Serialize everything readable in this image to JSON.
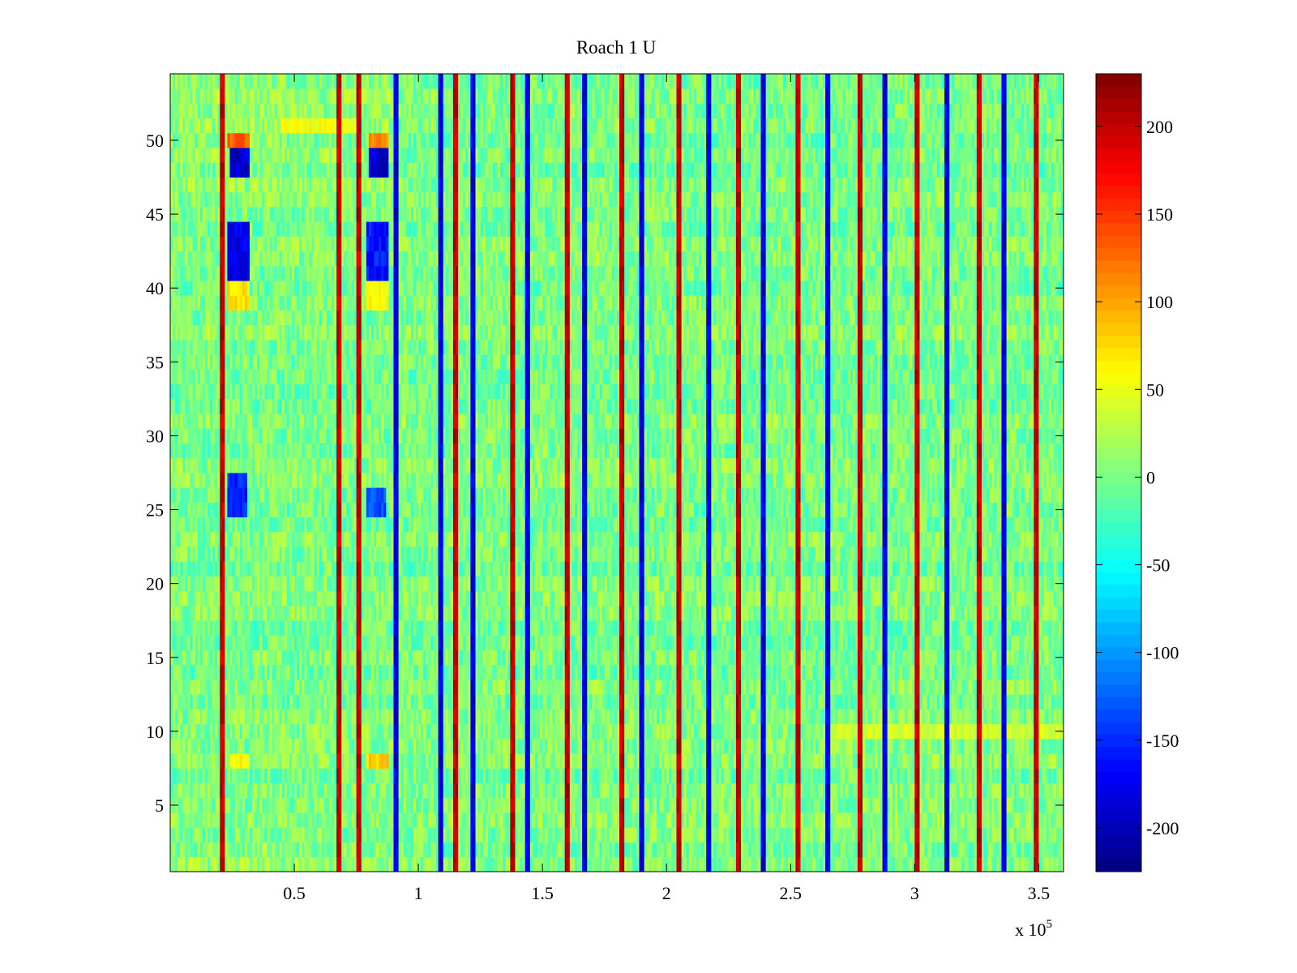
{
  "chart_data": {
    "type": "heatmap",
    "title": "Roach 1 U",
    "xlabel": "",
    "ylabel": "",
    "x_exponent_label": "x 10",
    "x_exponent_power": "5",
    "xlim": [
      0,
      3.6
    ],
    "ylim": [
      0.5,
      54.5
    ],
    "rows": 54,
    "columns": 360,
    "x_ticks": [
      0.5,
      1,
      1.5,
      2,
      2.5,
      3,
      3.5
    ],
    "x_tick_labels": [
      "0.5",
      "1",
      "1.5",
      "2",
      "2.5",
      "3",
      "3.5"
    ],
    "y_ticks": [
      5,
      10,
      15,
      20,
      25,
      30,
      35,
      40,
      45,
      50
    ],
    "y_tick_labels": [
      "5",
      "10",
      "15",
      "20",
      "25",
      "30",
      "35",
      "40",
      "45",
      "50"
    ],
    "colormap": "jet",
    "clim": [
      -225,
      230
    ],
    "colorbar_ticks": [
      200,
      150,
      100,
      50,
      0,
      -50,
      -100,
      -150,
      -200
    ],
    "colorbar_tick_labels": [
      "200",
      "150",
      "100",
      "50",
      "0",
      "-50",
      "-100",
      "-150",
      "-200"
    ],
    "background_value": 0,
    "background_noise": 30,
    "red_stripes_x": [
      0.21,
      0.68,
      0.76,
      0.91,
      1.15,
      1.38,
      1.6,
      1.82,
      2.05,
      2.29,
      2.53,
      2.78,
      3.01,
      3.26,
      3.49
    ],
    "red_stripe_value": 200,
    "blue_stripes_x": [
      0.91,
      1.09,
      1.22,
      1.44,
      1.67,
      1.9,
      2.17,
      2.39,
      2.65,
      2.88,
      3.13,
      3.36
    ],
    "blue_stripe_value": -180,
    "blue_patches": [
      {
        "x": [
          0.24,
          0.32
        ],
        "y": [
          48,
          49
        ],
        "value": -190
      },
      {
        "x": [
          0.8,
          0.88
        ],
        "y": [
          48,
          49
        ],
        "value": -190
      },
      {
        "x": [
          0.23,
          0.32
        ],
        "y": [
          41,
          44
        ],
        "value": -180
      },
      {
        "x": [
          0.79,
          0.88
        ],
        "y": [
          41,
          44
        ],
        "value": -160
      },
      {
        "x": [
          0.23,
          0.31
        ],
        "y": [
          25,
          27
        ],
        "value": -150
      },
      {
        "x": [
          0.79,
          0.87
        ],
        "y": [
          25,
          26
        ],
        "value": -130
      }
    ],
    "warm_patches": [
      {
        "x": [
          0.23,
          0.32
        ],
        "y": [
          50,
          50
        ],
        "value": 130
      },
      {
        "x": [
          0.8,
          0.88
        ],
        "y": [
          50,
          50
        ],
        "value": 110
      },
      {
        "x": [
          0.23,
          0.32
        ],
        "y": [
          39,
          40
        ],
        "value": 70
      },
      {
        "x": [
          0.79,
          0.88
        ],
        "y": [
          39,
          40
        ],
        "value": 60
      },
      {
        "x": [
          0.24,
          0.32
        ],
        "y": [
          8,
          8
        ],
        "value": 60
      },
      {
        "x": [
          0.79,
          0.88
        ],
        "y": [
          8,
          8
        ],
        "value": 80
      },
      {
        "x": [
          2.65,
          3.6
        ],
        "y": [
          10,
          10
        ],
        "value": 40
      },
      {
        "x": [
          0.45,
          0.75
        ],
        "y": [
          51,
          51
        ],
        "value": 55
      }
    ]
  }
}
